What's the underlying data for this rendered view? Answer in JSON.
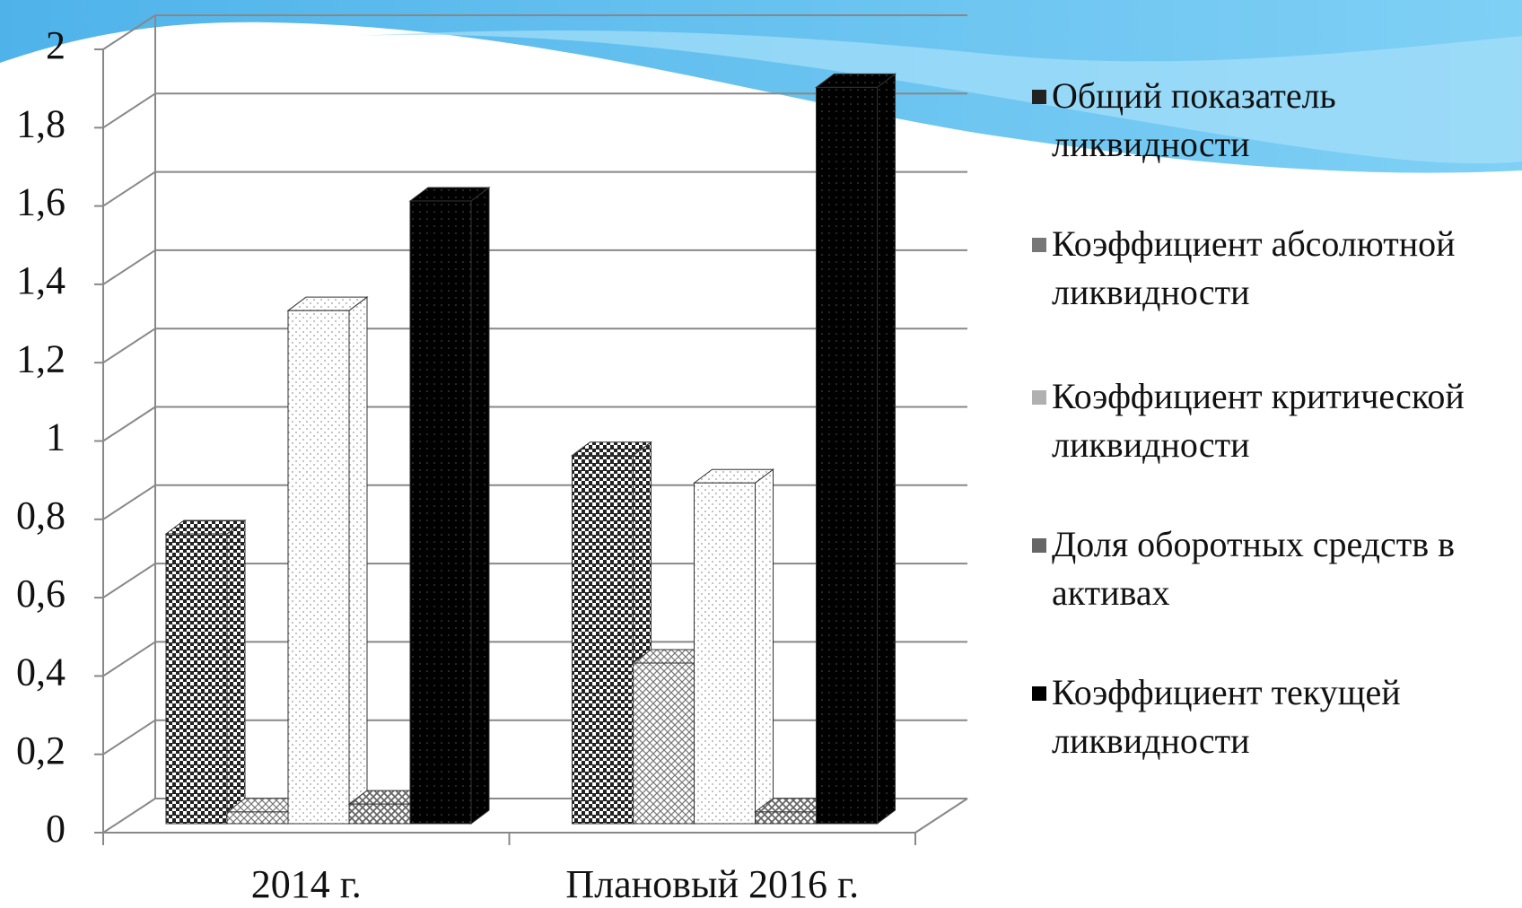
{
  "chart_data": {
    "type": "bar3d",
    "categories": [
      "2014 г.",
      "Плановый 2016 г."
    ],
    "series": [
      {
        "name": "Общий показатель ликвидности",
        "color": "#222222",
        "values": [
          0.74,
          0.94
        ]
      },
      {
        "name": "Коэффициент абсолютной ликвидности",
        "color": "#777777",
        "values": [
          0.03,
          0.41
        ]
      },
      {
        "name": "Коэффициент критической ликвидности",
        "color": "#b0b0b0",
        "values": [
          1.31,
          0.87
        ]
      },
      {
        "name": "Доля оборотных средств в активах",
        "color": "#666666",
        "values": [
          0.05,
          0.03
        ]
      },
      {
        "name": "Коэффициент текущей ликвидности",
        "color": "#000000",
        "values": [
          1.59,
          1.88
        ]
      }
    ],
    "ylim": [
      0,
      2
    ],
    "yticks": [
      0,
      {
        "value": 0.2,
        "label": "0,2"
      },
      {
        "value": 0.4,
        "label": "0,4"
      },
      {
        "value": 0.6,
        "label": "0,6"
      },
      {
        "value": 0.8,
        "label": "0,8"
      },
      1,
      {
        "value": 1.2,
        "label": "1,2"
      },
      {
        "value": 1.4,
        "label": "1,4"
      },
      {
        "value": 1.6,
        "label": "1,6"
      },
      {
        "value": 1.8,
        "label": "1,8"
      },
      2
    ],
    "grid": true
  }
}
